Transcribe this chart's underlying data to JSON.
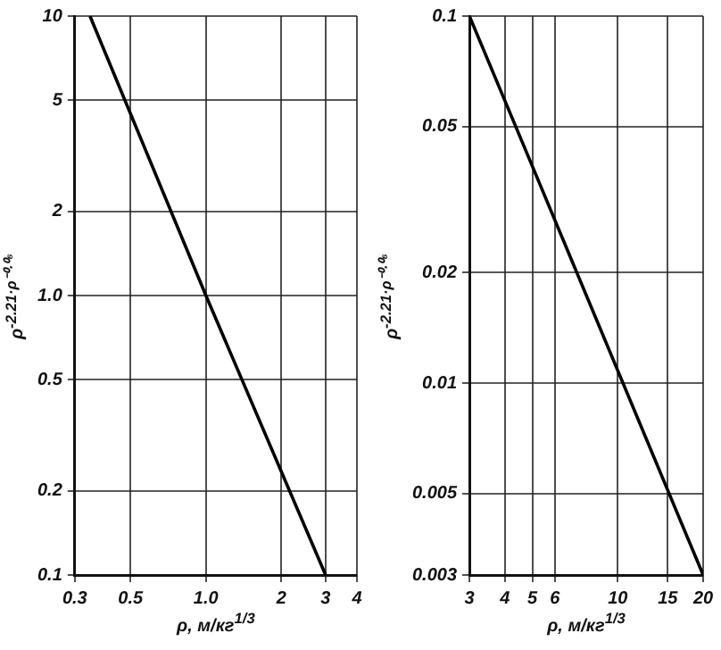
{
  "chart_data": [
    {
      "type": "line",
      "xlabel": "ρ, м/кг$^{1/3}$",
      "ylabel": "ρ$^{-2.21·ρ⁻⁰·⁰⁶}$",
      "log": "xy",
      "grid": true,
      "legend": false,
      "marker": "none",
      "line_style": "solid",
      "xlim": [
        0.3,
        4
      ],
      "xticks": [
        0.3,
        0.5,
        {
          "value": 1,
          "label": "1.0"
        },
        2,
        3,
        4
      ],
      "ylim": [
        0.1,
        10
      ],
      "yticks": [
        0.1,
        0.2,
        0.5,
        {
          "value": 1,
          "label": "1.0"
        },
        2,
        5,
        10
      ],
      "x": [
        0.345,
        1,
        3
      ],
      "series": [
        {
          "color": "#000000",
          "values": [
            10,
            1,
            0.1
          ]
        }
      ]
    },
    {
      "type": "line",
      "xlabel": "ρ, м/кг$^{1/3}$",
      "ylabel": "ρ$^{-2.21·ρ⁻⁰·⁰⁶}$",
      "log": "xy",
      "grid": true,
      "legend": false,
      "marker": "none",
      "line_style": "solid",
      "xlim": [
        3,
        20
      ],
      "xticks": [
        3,
        4,
        5,
        6,
        10,
        15,
        20
      ],
      "ylim": [
        0.003,
        0.1
      ],
      "yticks": [
        0.003,
        0.005,
        0.01,
        0.02,
        0.05,
        0.1
      ],
      "x": [
        3,
        5,
        20
      ],
      "series": [
        {
          "color": "#000000",
          "values": [
            0.1,
            0.039,
            0.003
          ]
        }
      ]
    }
  ]
}
